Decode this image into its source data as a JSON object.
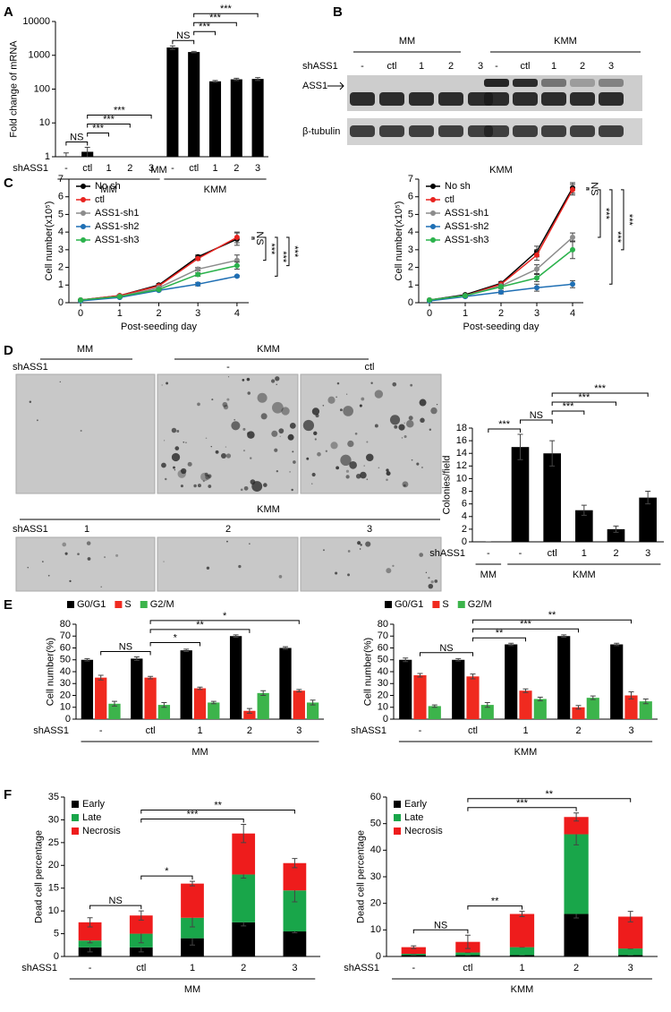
{
  "panel_labels": [
    "A",
    "B",
    "C",
    "D",
    "E",
    "F"
  ],
  "blot": {
    "groups": [
      "MM",
      "KMM"
    ],
    "row_label": "shASS1",
    "lanes": [
      "-",
      "ctl",
      "1",
      "2",
      "3",
      "-",
      "ctl",
      "1",
      "2",
      "3"
    ],
    "bands": [
      "ASS1",
      "β-tubulin"
    ]
  },
  "micrographs": {
    "top": {
      "groups": [
        "MM",
        "KMM"
      ],
      "row_label": "shASS1",
      "labels": [
        "-",
        "ctl"
      ]
    },
    "bottom": {
      "group": "KMM",
      "row_label": "shASS1",
      "labels": [
        "1",
        "2",
        "3"
      ]
    }
  },
  "chart_data": [
    {
      "type": "bar",
      "ylabel": "Fold change of mRNA",
      "xlabel": "shASS1",
      "log_scale": true,
      "categories": [
        "-",
        "ctl",
        "1",
        "2",
        "3",
        "-",
        "ctl",
        "1",
        "2",
        "3"
      ],
      "values": [
        1,
        1.4,
        0.02,
        0.02,
        0.02,
        1700,
        1250,
        170,
        195,
        200
      ],
      "errors": [
        0.3,
        0.5,
        0,
        0,
        0,
        200,
        60,
        10,
        15,
        20
      ],
      "color": "#000000",
      "ylim": [
        1,
        10000
      ],
      "yticks": [
        1,
        10,
        100,
        1000,
        10000
      ],
      "groups": [
        {
          "label": "MM",
          "span": [
            0,
            4
          ]
        },
        {
          "label": "KMM",
          "span": [
            5,
            9
          ]
        }
      ],
      "brackets": [
        {
          "label": "NS",
          "span": [
            0,
            1
          ]
        },
        {
          "label": "***",
          "span": [
            1,
            2
          ]
        },
        {
          "label": "***",
          "span": [
            1,
            3
          ]
        },
        {
          "label": "***",
          "span": [
            1,
            4
          ]
        },
        {
          "label": "NS",
          "span": [
            5,
            6
          ]
        },
        {
          "label": "***",
          "span": [
            6,
            7
          ]
        },
        {
          "label": "***",
          "span": [
            6,
            8
          ]
        },
        {
          "label": "***",
          "span": [
            6,
            9
          ]
        }
      ]
    },
    {
      "type": "line",
      "title": "MM",
      "xlabel": "Post-seeding day",
      "ylabel": "Cell number(x10⁵)",
      "x": [
        0,
        1,
        2,
        3,
        4
      ],
      "xlim": [
        -0.3,
        4.3
      ],
      "xticks": [
        0,
        1,
        2,
        3,
        4
      ],
      "ylim": [
        0,
        7
      ],
      "yticks": [
        0,
        1,
        2,
        3,
        4,
        5,
        6,
        7
      ],
      "legend": "upper left",
      "series": [
        {
          "name": "No sh",
          "color": "#000000",
          "values": [
            0.15,
            0.4,
            1.0,
            2.6,
            3.6
          ],
          "errors": [
            0.02,
            0.05,
            0.08,
            0.1,
            0.35
          ]
        },
        {
          "name": "ctl",
          "color": "#e8231f",
          "values": [
            0.15,
            0.4,
            0.95,
            2.5,
            3.7
          ],
          "errors": [
            0.02,
            0.05,
            0.08,
            0.1,
            0.3
          ]
        },
        {
          "name": "ASS1-sh1",
          "color": "#8c8c8c",
          "values": [
            0.15,
            0.35,
            0.85,
            1.9,
            2.4
          ],
          "errors": [
            0.02,
            0.05,
            0.08,
            0.1,
            0.3
          ]
        },
        {
          "name": "ASS1-sh2",
          "color": "#1f6fb4",
          "values": [
            0.1,
            0.3,
            0.7,
            1.05,
            1.5
          ],
          "errors": [
            0.02,
            0.03,
            0.05,
            0.1,
            0.05
          ]
        },
        {
          "name": "ASS1-sh3",
          "color": "#2bb24c",
          "values": [
            0.15,
            0.35,
            0.75,
            1.6,
            2.1
          ],
          "errors": [
            0.02,
            0.04,
            0.06,
            0.1,
            0.2
          ]
        }
      ],
      "brackets": [
        {
          "label": "NS",
          "span": [
            0,
            1
          ]
        },
        {
          "label": "***",
          "span": [
            1,
            2
          ]
        },
        {
          "label": "***",
          "span": [
            1,
            3
          ]
        },
        {
          "label": "***",
          "span": [
            1,
            4
          ]
        }
      ]
    },
    {
      "type": "line",
      "title": "KMM",
      "xlabel": "Post-seeding day",
      "ylabel": "Cell number(x10⁵)",
      "x": [
        0,
        1,
        2,
        3,
        4
      ],
      "xlim": [
        -0.3,
        4.3
      ],
      "xticks": [
        0,
        1,
        2,
        3,
        4
      ],
      "ylim": [
        0,
        7
      ],
      "yticks": [
        0,
        1,
        2,
        3,
        4,
        5,
        6,
        7
      ],
      "legend": "upper left",
      "series": [
        {
          "name": "No sh",
          "color": "#000000",
          "values": [
            0.15,
            0.45,
            1.1,
            2.9,
            6.5
          ],
          "errors": [
            0.02,
            0.05,
            0.1,
            0.3,
            0.3
          ]
        },
        {
          "name": "ctl",
          "color": "#e8231f",
          "values": [
            0.15,
            0.4,
            1.05,
            2.7,
            6.4
          ],
          "errors": [
            0.02,
            0.05,
            0.1,
            0.3,
            0.3
          ]
        },
        {
          "name": "ASS1-sh1",
          "color": "#8c8c8c",
          "values": [
            0.15,
            0.4,
            0.95,
            1.9,
            3.7
          ],
          "errors": [
            0.02,
            0.05,
            0.1,
            0.25,
            0.25
          ]
        },
        {
          "name": "ASS1-sh2",
          "color": "#1f6fb4",
          "values": [
            0.1,
            0.35,
            0.6,
            0.85,
            1.05
          ],
          "errors": [
            0.02,
            0.05,
            0.1,
            0.2,
            0.2
          ]
        },
        {
          "name": "ASS1-sh3",
          "color": "#2bb24c",
          "values": [
            0.15,
            0.4,
            0.9,
            1.4,
            3.0
          ],
          "errors": [
            0.02,
            0.05,
            0.1,
            0.2,
            0.5
          ]
        }
      ],
      "brackets": [
        {
          "label": "NS",
          "span": [
            0,
            1
          ]
        },
        {
          "label": "***",
          "span": [
            1,
            2
          ]
        },
        {
          "label": "***",
          "span": [
            1,
            3
          ]
        },
        {
          "label": "***",
          "span": [
            1,
            4
          ]
        }
      ]
    },
    {
      "type": "bar",
      "ylabel": "Colonies/field",
      "xlabel": "shASS1",
      "categories": [
        "-",
        "-",
        "ctl",
        "1",
        "2",
        "3"
      ],
      "values": [
        0,
        15,
        14,
        5,
        2,
        7
      ],
      "errors": [
        0,
        2,
        2,
        0.8,
        0.5,
        1
      ],
      "color": "#000000",
      "ylim": [
        0,
        18
      ],
      "yticks": [
        0,
        2,
        4,
        6,
        8,
        10,
        12,
        14,
        16,
        18
      ],
      "groups": [
        {
          "label": "MM",
          "span": [
            0,
            0
          ]
        },
        {
          "label": "KMM",
          "span": [
            1,
            5
          ]
        }
      ],
      "brackets": [
        {
          "label": "***",
          "span": [
            0,
            1
          ]
        },
        {
          "label": "NS",
          "span": [
            1,
            2
          ]
        },
        {
          "label": "***",
          "span": [
            2,
            3
          ]
        },
        {
          "label": "***",
          "span": [
            2,
            4
          ]
        },
        {
          "label": "***",
          "span": [
            2,
            5
          ]
        }
      ]
    },
    {
      "type": "bar",
      "ylabel": "Cell number(%)",
      "xlabel": "shASS1",
      "legend": "top",
      "categories": [
        "-",
        "ctl",
        "1",
        "2",
        "3"
      ],
      "ylim": [
        0,
        80
      ],
      "yticks": [
        0,
        10,
        20,
        30,
        40,
        50,
        60,
        70,
        80
      ],
      "series": [
        {
          "name": "G0/G1",
          "color": "#000000",
          "values": [
            50,
            51,
            58,
            70,
            60
          ],
          "errors": [
            1,
            1.5,
            1,
            1,
            1
          ]
        },
        {
          "name": "S",
          "color": "#f02a1f",
          "values": [
            35,
            35,
            26,
            7,
            24
          ],
          "errors": [
            2,
            1,
            1,
            2,
            1
          ]
        },
        {
          "name": "G2/M",
          "color": "#3cb44b",
          "values": [
            13,
            12,
            14,
            22,
            14
          ],
          "errors": [
            2,
            2,
            1,
            2,
            2
          ]
        }
      ],
      "groups": [
        {
          "label": "MM",
          "span": [
            0,
            4
          ]
        }
      ],
      "brackets": [
        {
          "label": "NS",
          "span": [
            0,
            1
          ]
        },
        {
          "label": "*",
          "span": [
            1,
            2
          ]
        },
        {
          "label": "**",
          "span": [
            1,
            3
          ]
        },
        {
          "label": "*",
          "span": [
            1,
            4
          ]
        }
      ]
    },
    {
      "type": "bar",
      "ylabel": "Cell number(%)",
      "xlabel": "shASS1",
      "legend": "top",
      "categories": [
        "-",
        "ctl",
        "1",
        "2",
        "3"
      ],
      "ylim": [
        0,
        80
      ],
      "yticks": [
        0,
        10,
        20,
        30,
        40,
        50,
        60,
        70,
        80
      ],
      "series": [
        {
          "name": "G0/G1",
          "color": "#000000",
          "values": [
            50,
            50,
            63,
            70,
            63
          ],
          "errors": [
            1.5,
            1,
            1,
            1,
            1
          ]
        },
        {
          "name": "S",
          "color": "#f02a1f",
          "values": [
            37,
            36,
            24,
            10,
            20
          ],
          "errors": [
            1.5,
            2,
            1.5,
            1.5,
            3
          ]
        },
        {
          "name": "G2/M",
          "color": "#3cb44b",
          "values": [
            11,
            12,
            17,
            18,
            15
          ],
          "errors": [
            1,
            2,
            1.5,
            1.5,
            2
          ]
        }
      ],
      "groups": [
        {
          "label": "KMM",
          "span": [
            0,
            4
          ]
        }
      ],
      "brackets": [
        {
          "label": "NS",
          "span": [
            0,
            1
          ]
        },
        {
          "label": "**",
          "span": [
            1,
            2
          ]
        },
        {
          "label": "***",
          "span": [
            1,
            3
          ]
        },
        {
          "label": "**",
          "span": [
            1,
            4
          ]
        }
      ]
    },
    {
      "type": "stacked_bar",
      "ylabel": "Dead cell percentage",
      "xlabel": "shASS1",
      "legend": "upper left",
      "categories": [
        "-",
        "ctl",
        "1",
        "2",
        "3"
      ],
      "ylim": [
        0,
        35
      ],
      "yticks": [
        0,
        5,
        10,
        15,
        20,
        25,
        30,
        35
      ],
      "series": [
        {
          "name": "Early",
          "color": "#000000",
          "values": [
            2,
            2,
            4,
            7.5,
            5.5
          ],
          "errors": [
            1,
            1,
            1.5,
            0.8,
            0.3
          ]
        },
        {
          "name": "Late",
          "color": "#19a64a",
          "values": [
            1.5,
            3,
            4.5,
            10.5,
            9
          ],
          "errors": [
            0.5,
            2,
            2,
            0.8,
            2.5
          ]
        },
        {
          "name": "Necrosis",
          "color": "#ee1c1c",
          "values": [
            4,
            4,
            7.5,
            9,
            6
          ],
          "errors": [
            1,
            1,
            0.5,
            2,
            1
          ]
        }
      ],
      "groups": [
        {
          "label": "MM",
          "span": [
            0,
            4
          ]
        }
      ],
      "brackets": [
        {
          "label": "NS",
          "span": [
            0,
            1
          ]
        },
        {
          "label": "*",
          "span": [
            1,
            2
          ]
        },
        {
          "label": "***",
          "span": [
            1,
            3
          ]
        },
        {
          "label": "**",
          "span": [
            1,
            4
          ]
        }
      ]
    },
    {
      "type": "stacked_bar",
      "ylabel": "Dead cell percentage",
      "xlabel": "shASS1",
      "legend": "upper left",
      "categories": [
        "-",
        "ctl",
        "1",
        "2",
        "3"
      ],
      "ylim": [
        0,
        60
      ],
      "yticks": [
        0,
        10,
        20,
        30,
        40,
        50,
        60
      ],
      "series": [
        {
          "name": "Early",
          "color": "#000000",
          "values": [
            0.5,
            0.5,
            0.5,
            16,
            0.5
          ],
          "errors": [
            0,
            0,
            0,
            1.5,
            0
          ]
        },
        {
          "name": "Late",
          "color": "#19a64a",
          "values": [
            0.5,
            1,
            3,
            30,
            2.5
          ],
          "errors": [
            0,
            0,
            0,
            4,
            0
          ]
        },
        {
          "name": "Necrosis",
          "color": "#ee1c1c",
          "values": [
            2.5,
            4,
            12.5,
            6.5,
            12
          ],
          "errors": [
            0.5,
            2.5,
            1,
            1.5,
            2
          ]
        }
      ],
      "groups": [
        {
          "label": "KMM",
          "span": [
            0,
            4
          ]
        }
      ],
      "brackets": [
        {
          "label": "NS",
          "span": [
            0,
            1
          ]
        },
        {
          "label": "**",
          "span": [
            1,
            2
          ]
        },
        {
          "label": "***",
          "span": [
            1,
            3
          ]
        },
        {
          "label": "**",
          "span": [
            1,
            4
          ]
        }
      ]
    }
  ]
}
